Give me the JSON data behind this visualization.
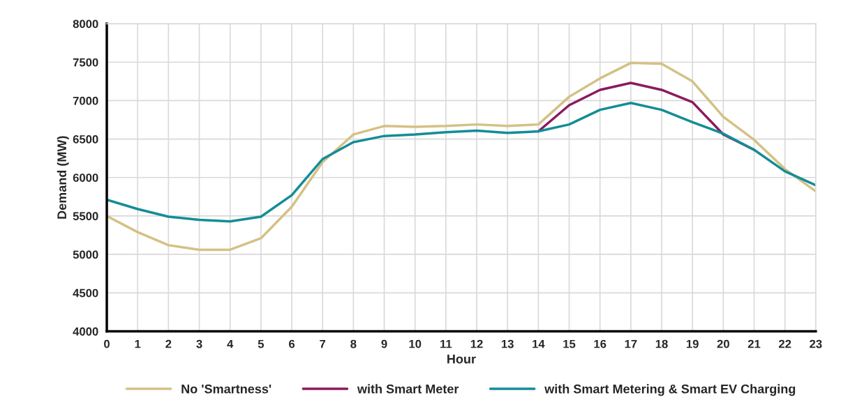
{
  "chart_data": {
    "type": "line",
    "xlabel": "Hour",
    "ylabel": "Demand (MW)",
    "x": [
      0,
      1,
      2,
      3,
      4,
      5,
      6,
      7,
      8,
      9,
      10,
      11,
      12,
      13,
      14,
      15,
      16,
      17,
      18,
      19,
      20,
      21,
      22,
      23
    ],
    "xlim": [
      0,
      23
    ],
    "xticks": [
      0,
      1,
      2,
      3,
      4,
      5,
      6,
      7,
      8,
      9,
      10,
      11,
      12,
      13,
      14,
      15,
      16,
      17,
      18,
      19,
      20,
      21,
      22,
      23
    ],
    "ylim": [
      4000,
      8000
    ],
    "yticks": [
      4000,
      4500,
      5000,
      5500,
      6000,
      6500,
      7000,
      7500,
      8000
    ],
    "grid": true,
    "legend": "bottom",
    "marker": "none",
    "line_style": "solid",
    "series": [
      {
        "name": "No 'Smartness'",
        "color": "#d4c185",
        "values": [
          5500,
          5290,
          5120,
          5060,
          5060,
          5210,
          5620,
          6200,
          6560,
          6670,
          6660,
          6670,
          6690,
          6670,
          6690,
          7050,
          7290,
          7490,
          7480,
          7250,
          6790,
          6490,
          6110,
          5820
        ]
      },
      {
        "name": "with Smart Meter",
        "color": "#8b1a5e",
        "values": [
          null,
          null,
          null,
          null,
          null,
          null,
          null,
          null,
          null,
          null,
          null,
          null,
          null,
          null,
          6600,
          6940,
          7140,
          7230,
          7140,
          6980,
          6560,
          6360,
          null,
          null
        ]
      },
      {
        "name": "with Smart Metering & Smart EV Charging",
        "color": "#138d96",
        "values": [
          5710,
          5590,
          5490,
          5450,
          5430,
          5490,
          5770,
          6240,
          6460,
          6540,
          6560,
          6590,
          6610,
          6580,
          6600,
          6690,
          6880,
          6970,
          6880,
          6720,
          6570,
          6360,
          6080,
          5900
        ]
      }
    ]
  }
}
